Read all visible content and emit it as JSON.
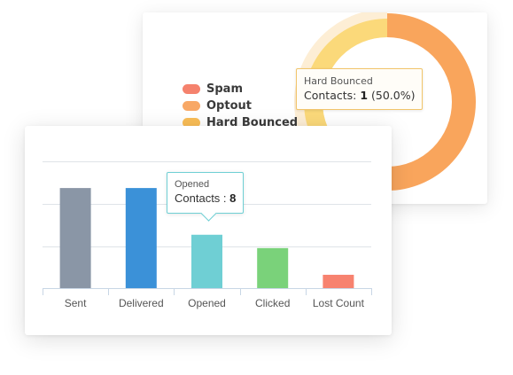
{
  "chart_data": [
    {
      "type": "pie",
      "title": "",
      "series": [
        {
          "name": "Spam",
          "color": "#f5826d"
        },
        {
          "name": "Optout",
          "color": "#f8a866"
        },
        {
          "name": "Hard Bounced",
          "color": "#f9bd57"
        }
      ],
      "visible_slices": [
        {
          "name": "Hard Bounced",
          "value": 1,
          "percent": 50.0,
          "color": "#f9a55c",
          "highlighted": false
        },
        {
          "name": "Hard Bounced",
          "value": 1,
          "percent": 50.0,
          "color": "#fbd97a",
          "highlighted": true
        }
      ],
      "tooltip": {
        "title": "Hard Bounced",
        "label": "Contacts: ",
        "value": "1",
        "suffix": " (50.0%)"
      },
      "legend_position": "left"
    },
    {
      "type": "bar",
      "title": "",
      "xlabel": "",
      "ylabel": "",
      "categories": [
        "Sent",
        "Delivered",
        "Opened",
        "Clicked",
        "Lost Count"
      ],
      "values": [
        15,
        15,
        8,
        6,
        2
      ],
      "colors": [
        "#8a96a6",
        "#3b91d8",
        "#6fcfd4",
        "#7ad27a",
        "#f7826f"
      ],
      "ylim": [
        0,
        19
      ],
      "grid": true,
      "gridlines": [
        0,
        6.3,
        12.6,
        19
      ],
      "tooltip": {
        "category_index": 2,
        "title": "Opened",
        "label": "Contacts : ",
        "value": "8"
      }
    }
  ]
}
